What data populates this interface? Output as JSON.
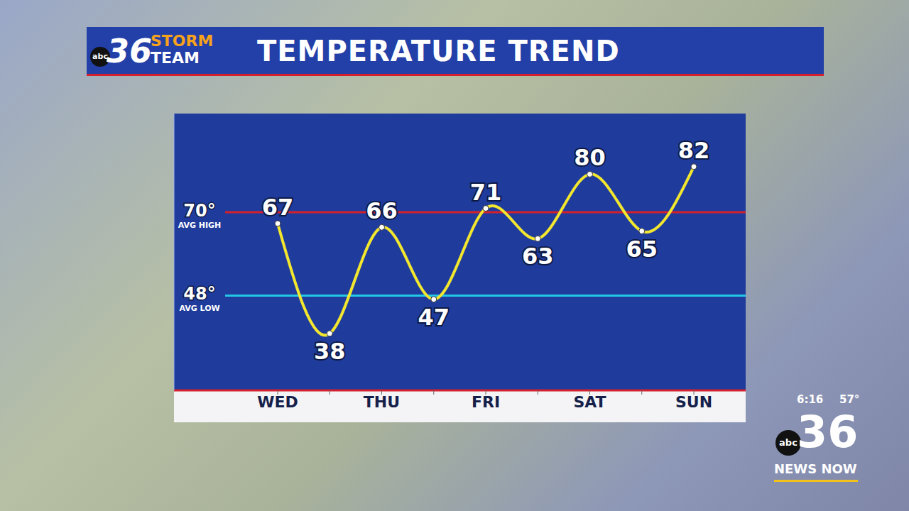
{
  "header": {
    "network": "abc",
    "logo_number": "36",
    "logo_top": "STORM",
    "logo_bottom": "TEAM",
    "title": "TEMPERATURE TREND"
  },
  "chart_data": {
    "type": "line",
    "categories": [
      "WED",
      null,
      "THU",
      null,
      "FRI",
      null,
      "SAT",
      null,
      "SUN"
    ],
    "values": [
      67,
      38,
      66,
      47,
      71,
      63,
      80,
      65,
      82
    ],
    "color": "#f2e62e",
    "marker": "circle",
    "data_labels": true,
    "tick_labels": "x",
    "grid": false,
    "ylim": [
      23,
      96
    ],
    "yticks": [],
    "reference_lines": [
      {
        "value": 70,
        "label": "70°",
        "sublabel": "AVG HIGH",
        "color": "#d3202c"
      },
      {
        "value": 48,
        "label": "48°",
        "sublabel": "AVG LOW",
        "color": "#22c8e6"
      }
    ]
  },
  "overlay": {
    "time": "6:16",
    "temperature": "57°",
    "network": "abc",
    "station": "36",
    "brand": "NEWS NOW"
  }
}
